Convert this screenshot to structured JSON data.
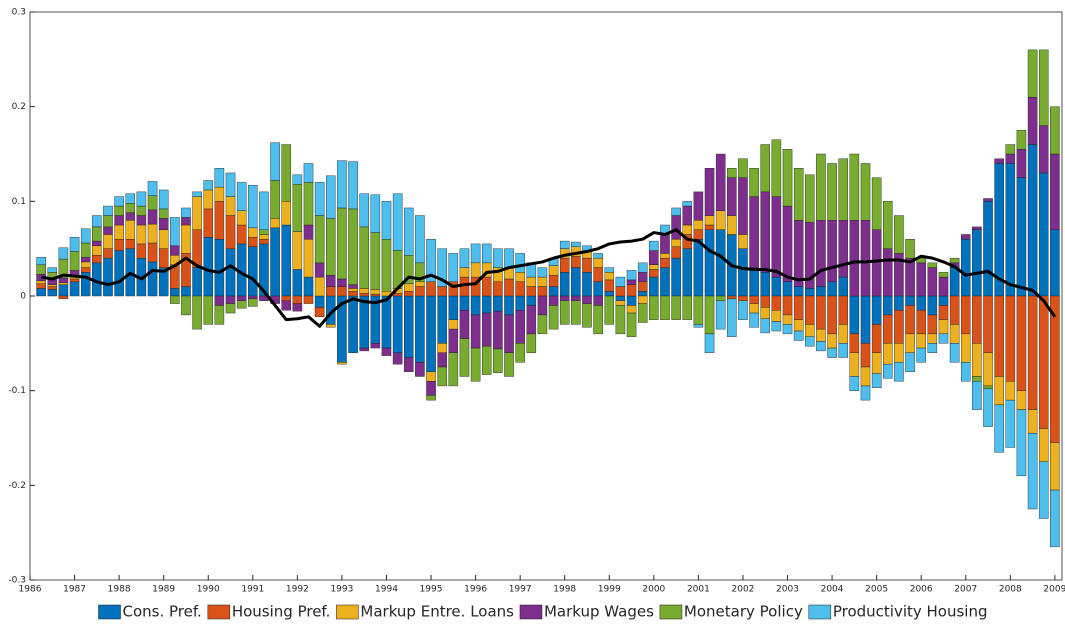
{
  "chart_data": {
    "type": "bar",
    "xlim": [
      1986,
      2009.16
    ],
    "xticks": [
      1986,
      1987,
      1988,
      1989,
      1990,
      1991,
      1992,
      1993,
      1994,
      1995,
      1996,
      1997,
      1998,
      1999,
      2000,
      2001,
      2002,
      2003,
      2004,
      2005,
      2006,
      2007,
      2008,
      2009
    ],
    "ylim": [
      -0.3,
      0.3
    ],
    "yticks": [
      -0.3,
      -0.2,
      -0.1,
      0,
      0.1,
      0.2,
      0.3
    ],
    "x": [
      1986.25,
      1986.5,
      1986.75,
      1987,
      1987.25,
      1987.5,
      1987.75,
      1988,
      1988.25,
      1988.5,
      1988.75,
      1989,
      1989.25,
      1989.5,
      1989.75,
      1990,
      1990.25,
      1990.5,
      1990.75,
      1991,
      1991.25,
      1991.5,
      1991.75,
      1992,
      1992.25,
      1992.5,
      1992.75,
      1993,
      1993.25,
      1993.5,
      1993.75,
      1994,
      1994.25,
      1994.5,
      1994.75,
      1995,
      1995.25,
      1995.5,
      1995.75,
      1996,
      1996.25,
      1996.5,
      1996.75,
      1997,
      1997.25,
      1997.5,
      1997.75,
      1998,
      1998.25,
      1998.5,
      1998.75,
      1999,
      1999.25,
      1999.5,
      1999.75,
      2000,
      2000.25,
      2000.5,
      2000.75,
      2001,
      2001.25,
      2001.5,
      2001.75,
      2002,
      2002.25,
      2002.5,
      2002.75,
      2003,
      2003.25,
      2003.5,
      2003.75,
      2004,
      2004.25,
      2004.5,
      2004.75,
      2005,
      2005.25,
      2005.5,
      2005.75,
      2006,
      2006.25,
      2006.5,
      2006.75,
      2007,
      2007.25,
      2007.5,
      2007.75,
      2008,
      2008.25,
      2008.5,
      2008.75,
      2009
    ],
    "series": [
      {
        "name": "Cons. Pref.",
        "color": "#0072BD",
        "values": [
          0.008,
          0.007,
          0.012,
          0.015,
          0.025,
          0.035,
          0.04,
          0.048,
          0.05,
          0.04,
          0.036,
          0.03,
          0.008,
          0.01,
          0.03,
          0.062,
          0.06,
          0.05,
          0.055,
          0.052,
          0.055,
          0.072,
          0.075,
          0.028,
          0.02,
          -0.012,
          -0.03,
          -0.07,
          -0.06,
          -0.055,
          -0.05,
          -0.055,
          -0.06,
          -0.065,
          -0.07,
          -0.08,
          -0.05,
          -0.025,
          -0.015,
          -0.02,
          -0.018,
          -0.016,
          -0.02,
          -0.015,
          -0.01,
          0.0,
          0.01,
          0.025,
          0.03,
          0.025,
          0.015,
          0.005,
          -0.005,
          -0.01,
          0.005,
          0.02,
          0.03,
          0.04,
          0.05,
          0.06,
          0.07,
          0.07,
          0.065,
          0.05,
          0.03,
          0.025,
          0.02,
          0.015,
          0.01,
          0.008,
          0.01,
          0.015,
          0.02,
          -0.04,
          -0.05,
          -0.03,
          -0.02,
          -0.015,
          -0.01,
          -0.015,
          -0.02,
          -0.01,
          0.03,
          0.06,
          0.07,
          0.1,
          0.14,
          0.14,
          0.125,
          0.16,
          0.13,
          0.07
        ]
      },
      {
        "name": "Housing Pref.",
        "color": "#D95319",
        "values": [
          0.005,
          0.003,
          -0.003,
          0.003,
          0.005,
          0.008,
          0.01,
          0.012,
          0.01,
          0.015,
          0.02,
          0.02,
          0.025,
          0.035,
          0.04,
          0.03,
          0.04,
          0.035,
          0.02,
          0.01,
          0.005,
          0.0,
          -0.005,
          -0.008,
          -0.008,
          -0.01,
          0.01,
          0.01,
          0.005,
          0.003,
          0.002,
          0.0,
          0.003,
          0.005,
          0.01,
          0.015,
          0.01,
          0.015,
          0.02,
          0.02,
          0.02,
          0.015,
          0.018,
          0.015,
          0.01,
          0.01,
          0.012,
          0.015,
          0.012,
          0.015,
          0.015,
          0.012,
          0.01,
          0.012,
          0.01,
          0.008,
          0.01,
          0.012,
          0.015,
          0.01,
          0.005,
          0.0,
          -0.003,
          -0.005,
          -0.008,
          -0.012,
          -0.015,
          -0.02,
          -0.025,
          -0.03,
          -0.035,
          -0.04,
          -0.03,
          -0.02,
          -0.025,
          -0.03,
          -0.03,
          -0.035,
          -0.03,
          -0.025,
          -0.02,
          -0.015,
          -0.03,
          -0.04,
          -0.05,
          -0.06,
          -0.085,
          -0.09,
          -0.1,
          -0.12,
          -0.14,
          -0.155
        ]
      },
      {
        "name": "Markup Entre. Loans",
        "color": "#EDB120",
        "values": [
          0.003,
          0.002,
          0.002,
          0.004,
          0.006,
          0.01,
          0.015,
          0.015,
          0.02,
          0.02,
          0.02,
          0.02,
          0.01,
          0.03,
          0.035,
          0.02,
          0.015,
          0.02,
          0.015,
          0.01,
          0.005,
          0.01,
          0.025,
          0.04,
          0.04,
          0.02,
          -0.003,
          -0.002,
          0.003,
          0.005,
          0.005,
          0.005,
          0.005,
          0.008,
          0.005,
          -0.01,
          -0.01,
          -0.01,
          0.01,
          0.015,
          0.015,
          0.015,
          0.012,
          0.01,
          0.01,
          0.01,
          0.01,
          0.01,
          0.01,
          0.008,
          0.01,
          0.008,
          -0.005,
          -0.008,
          -0.008,
          0.005,
          0.005,
          0.008,
          0.01,
          0.01,
          0.01,
          0.02,
          0.02,
          0.015,
          -0.01,
          -0.012,
          -0.012,
          -0.01,
          -0.012,
          -0.013,
          -0.013,
          -0.015,
          -0.02,
          -0.025,
          -0.02,
          -0.022,
          -0.022,
          -0.02,
          -0.02,
          -0.015,
          -0.01,
          -0.015,
          -0.02,
          -0.03,
          -0.035,
          -0.035,
          -0.03,
          -0.02,
          -0.02,
          -0.025,
          -0.035,
          -0.05
        ]
      },
      {
        "name": "Markup Wages",
        "color": "#7E2F8E",
        "values": [
          0.007,
          0.005,
          0.005,
          0.005,
          0.005,
          0.005,
          0.008,
          0.01,
          0.008,
          0.01,
          0.015,
          0.012,
          0.01,
          0.008,
          0.0,
          0.0,
          -0.01,
          -0.008,
          -0.005,
          -0.003,
          -0.005,
          -0.008,
          -0.01,
          -0.008,
          0.015,
          0.015,
          0.012,
          0.008,
          0.004,
          -0.003,
          -0.005,
          -0.008,
          -0.012,
          -0.015,
          -0.015,
          -0.015,
          -0.015,
          -0.025,
          -0.03,
          -0.035,
          -0.035,
          -0.04,
          -0.04,
          -0.035,
          -0.03,
          -0.02,
          -0.01,
          -0.005,
          -0.005,
          -0.008,
          -0.01,
          0.0,
          0.0,
          0.005,
          0.01,
          0.015,
          0.02,
          0.025,
          0.02,
          0.03,
          0.05,
          0.06,
          0.04,
          0.06,
          0.075,
          0.085,
          0.085,
          0.08,
          0.07,
          0.07,
          0.07,
          0.065,
          0.06,
          0.08,
          0.08,
          0.07,
          0.05,
          0.045,
          0.04,
          0.035,
          0.03,
          0.02,
          0.005,
          0.005,
          0.003,
          0.003,
          0.005,
          0.01,
          0.03,
          0.05,
          0.05,
          0.08
        ]
      },
      {
        "name": "Monetary Policy",
        "color": "#77AC30",
        "values": [
          0.01,
          0.008,
          0.02,
          0.02,
          0.015,
          0.015,
          0.012,
          0.01,
          0.01,
          0.01,
          0.015,
          0.01,
          -0.008,
          -0.02,
          -0.035,
          -0.03,
          -0.02,
          -0.01,
          -0.008,
          -0.008,
          0.005,
          0.04,
          0.06,
          0.05,
          0.045,
          0.05,
          0.06,
          0.075,
          0.08,
          0.065,
          0.06,
          0.055,
          0.04,
          0.03,
          0.02,
          -0.005,
          -0.02,
          -0.035,
          -0.04,
          -0.035,
          -0.03,
          -0.025,
          -0.025,
          -0.02,
          -0.02,
          -0.02,
          -0.025,
          -0.025,
          -0.025,
          -0.025,
          -0.03,
          -0.03,
          -0.03,
          -0.025,
          -0.02,
          -0.025,
          -0.025,
          -0.025,
          -0.025,
          -0.03,
          -0.04,
          -0.005,
          0.01,
          0.02,
          0.03,
          0.05,
          0.06,
          0.06,
          0.055,
          0.05,
          0.07,
          0.06,
          0.065,
          0.07,
          0.06,
          0.055,
          0.05,
          0.04,
          0.02,
          0.005,
          0.005,
          0.005,
          0.005,
          0.0,
          -0.005,
          -0.003,
          0.0,
          0.01,
          0.02,
          0.05,
          0.08,
          0.05
        ]
      },
      {
        "name": "Productivity Housing",
        "color": "#4DBEEE",
        "values": [
          0.008,
          0.005,
          0.012,
          0.015,
          0.015,
          0.012,
          0.01,
          0.01,
          0.01,
          0.015,
          0.015,
          0.02,
          0.03,
          0.01,
          0.005,
          0.01,
          0.02,
          0.025,
          0.03,
          0.045,
          0.04,
          0.04,
          0.0,
          0.01,
          0.02,
          0.035,
          0.045,
          0.05,
          0.05,
          0.035,
          0.04,
          0.04,
          0.06,
          0.05,
          0.05,
          0.045,
          0.04,
          0.03,
          0.02,
          0.02,
          0.02,
          0.02,
          0.02,
          0.02,
          0.015,
          0.01,
          0.008,
          0.008,
          0.005,
          0.005,
          0.005,
          0.005,
          0.01,
          0.01,
          0.01,
          0.01,
          0.01,
          0.008,
          0.005,
          -0.003,
          -0.02,
          -0.03,
          -0.04,
          -0.02,
          -0.015,
          -0.015,
          -0.01,
          -0.01,
          -0.01,
          -0.01,
          -0.01,
          -0.01,
          -0.015,
          -0.015,
          -0.015,
          -0.015,
          -0.015,
          -0.02,
          -0.02,
          -0.015,
          -0.01,
          -0.01,
          -0.02,
          -0.02,
          -0.03,
          -0.04,
          -0.05,
          -0.05,
          -0.07,
          -0.08,
          -0.06,
          -0.06
        ]
      }
    ],
    "line": {
      "color": "#000000",
      "values": [
        0.02,
        0.018,
        0.022,
        0.021,
        0.02,
        0.015,
        0.012,
        0.015,
        0.024,
        0.018,
        0.027,
        0.026,
        0.032,
        0.04,
        0.032,
        0.027,
        0.025,
        0.032,
        0.024,
        0.018,
        0.005,
        -0.01,
        -0.025,
        -0.024,
        -0.022,
        -0.032,
        -0.018,
        -0.008,
        -0.003,
        -0.006,
        -0.007,
        -0.004,
        0.008,
        0.02,
        0.018,
        0.022,
        0.017,
        0.01,
        0.012,
        0.013,
        0.025,
        0.026,
        0.03,
        0.032,
        0.034,
        0.036,
        0.04,
        0.043,
        0.045,
        0.047,
        0.05,
        0.055,
        0.057,
        0.058,
        0.06,
        0.067,
        0.065,
        0.07,
        0.06,
        0.058,
        0.048,
        0.042,
        0.032,
        0.029,
        0.028,
        0.028,
        0.026,
        0.02,
        0.017,
        0.018,
        0.027,
        0.03,
        0.033,
        0.036,
        0.036,
        0.037,
        0.038,
        0.038,
        0.036,
        0.042,
        0.04,
        0.036,
        0.031,
        0.022,
        0.024,
        0.026,
        0.018,
        0.012,
        0.009,
        0.006,
        -0.005,
        -0.022
      ]
    }
  }
}
